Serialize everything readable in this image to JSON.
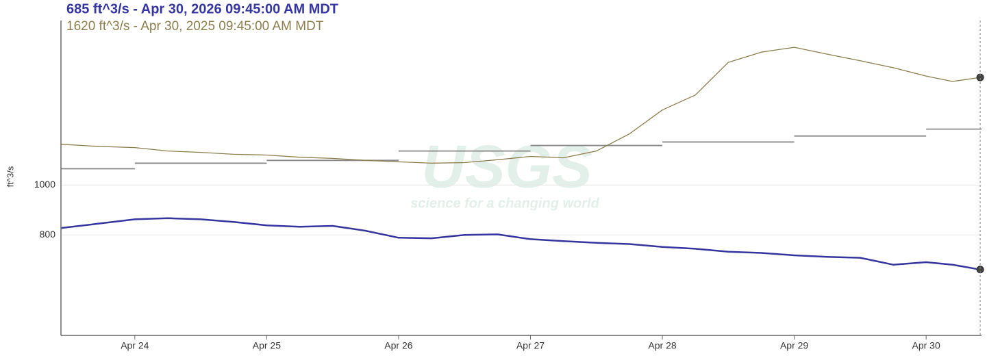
{
  "chart_data": {
    "type": "line",
    "headers": [
      "685 ft^3/s - Apr 30, 2026 09:45:00 AM MDT",
      "1620 ft^3/s - Apr 30, 2025 09:45:00 AM MDT"
    ],
    "y_label": "ft^3/s",
    "watermark": {
      "logo": "USGS",
      "tagline": "science for a changing world"
    },
    "log_scale": true,
    "grid": true,
    "xlim": [
      23.44,
      30.42
    ],
    "xticks": [
      {
        "value": 24,
        "label": "Apr 24"
      },
      {
        "value": 25,
        "label": "Apr 25"
      },
      {
        "value": 26,
        "label": "Apr 26"
      },
      {
        "value": 27,
        "label": "Apr 27"
      },
      {
        "value": 28,
        "label": "Apr 28"
      },
      {
        "value": 29,
        "label": "Apr 29"
      },
      {
        "value": 30,
        "label": "Apr 30"
      }
    ],
    "ylim": [
      510,
      2090
    ],
    "yticks": [
      800,
      1000
    ],
    "x": [
      23.44,
      23.7,
      24.0,
      24.25,
      24.5,
      24.75,
      25.0,
      25.25,
      25.5,
      25.75,
      26.0,
      26.25,
      26.5,
      26.75,
      27.0,
      27.25,
      27.5,
      27.75,
      28.0,
      28.25,
      28.5,
      28.75,
      29.0,
      29.25,
      29.5,
      29.75,
      30.0,
      30.2,
      30.41
    ],
    "series": [
      {
        "color": "#3535a0",
        "width": 2.5,
        "values": [
          825,
          840,
          858,
          862,
          858,
          848,
          835,
          830,
          833,
          815,
          790,
          788,
          800,
          802,
          785,
          778,
          772,
          768,
          758,
          752,
          742,
          738,
          730,
          725,
          722,
          700,
          708,
          700,
          685
        ]
      },
      {
        "color": "#8c7d4c",
        "width": 1.3,
        "values": [
          1201,
          1190,
          1183,
          1165,
          1158,
          1148,
          1144,
          1133,
          1127,
          1117,
          1110,
          1103,
          1106,
          1120,
          1137,
          1130,
          1165,
          1258,
          1400,
          1497,
          1733,
          1814,
          1854,
          1798,
          1745,
          1692,
          1630,
          1591,
          1620
        ]
      }
    ],
    "steps": {
      "color": "#888888",
      "bins": [
        23.44,
        24,
        25,
        26,
        27,
        28,
        29,
        30,
        30.42
      ],
      "values": [
        1076,
        1103,
        1117,
        1165,
        1194,
        1213,
        1246,
        1285
      ]
    }
  }
}
